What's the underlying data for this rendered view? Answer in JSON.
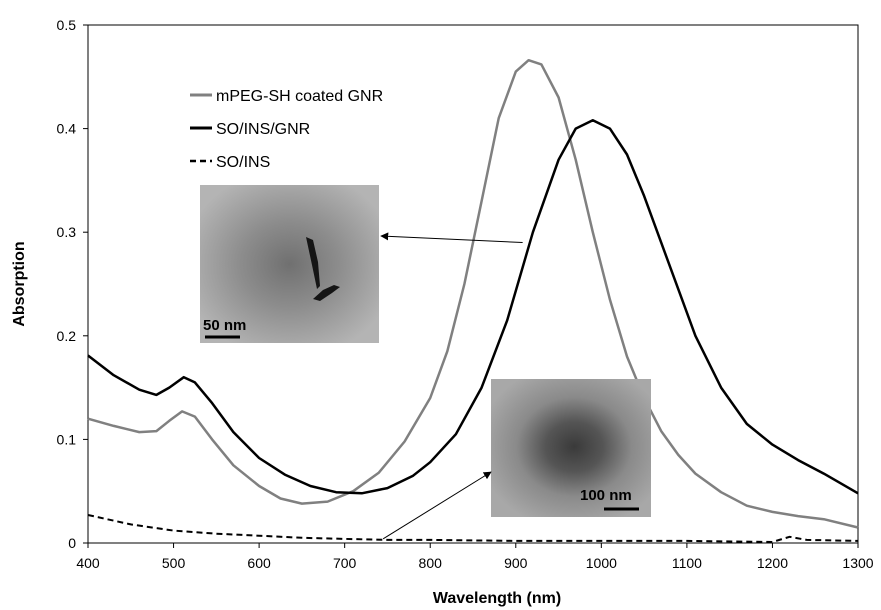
{
  "chart_data": {
    "type": "line",
    "xlabel": "Wavelength (nm)",
    "ylabel": "Absorption",
    "xlim": [
      400,
      1300
    ],
    "ylim": [
      0,
      0.5
    ],
    "x_ticks": [
      "400",
      "500",
      "600",
      "700",
      "800",
      "900",
      "1000",
      "1100",
      "1200",
      "1300"
    ],
    "y_ticks": [
      "0",
      "0.1",
      "0.2",
      "0.3",
      "0.4",
      "0.5"
    ],
    "grid": false,
    "legend_position": "top-left",
    "series": [
      {
        "name": "mPEG-SH coated GNR",
        "color": "#808080",
        "style": "solid",
        "points": [
          [
            400,
            0.12
          ],
          [
            430,
            0.113
          ],
          [
            460,
            0.107
          ],
          [
            480,
            0.108
          ],
          [
            495,
            0.118
          ],
          [
            510,
            0.127
          ],
          [
            525,
            0.122
          ],
          [
            545,
            0.1
          ],
          [
            570,
            0.075
          ],
          [
            600,
            0.055
          ],
          [
            625,
            0.043
          ],
          [
            650,
            0.038
          ],
          [
            680,
            0.04
          ],
          [
            710,
            0.05
          ],
          [
            740,
            0.068
          ],
          [
            770,
            0.098
          ],
          [
            800,
            0.14
          ],
          [
            820,
            0.185
          ],
          [
            840,
            0.25
          ],
          [
            860,
            0.33
          ],
          [
            880,
            0.41
          ],
          [
            900,
            0.455
          ],
          [
            915,
            0.466
          ],
          [
            930,
            0.462
          ],
          [
            950,
            0.43
          ],
          [
            970,
            0.37
          ],
          [
            990,
            0.3
          ],
          [
            1010,
            0.235
          ],
          [
            1030,
            0.18
          ],
          [
            1050,
            0.14
          ],
          [
            1070,
            0.108
          ],
          [
            1090,
            0.085
          ],
          [
            1110,
            0.067
          ],
          [
            1140,
            0.049
          ],
          [
            1170,
            0.036
          ],
          [
            1200,
            0.03
          ],
          [
            1230,
            0.026
          ],
          [
            1260,
            0.023
          ],
          [
            1300,
            0.015
          ]
        ]
      },
      {
        "name": "SO/INS/GNR",
        "color": "#000000",
        "style": "solid",
        "points": [
          [
            400,
            0.181
          ],
          [
            430,
            0.162
          ],
          [
            460,
            0.148
          ],
          [
            480,
            0.143
          ],
          [
            495,
            0.15
          ],
          [
            512,
            0.16
          ],
          [
            525,
            0.155
          ],
          [
            545,
            0.135
          ],
          [
            570,
            0.107
          ],
          [
            600,
            0.082
          ],
          [
            630,
            0.066
          ],
          [
            660,
            0.055
          ],
          [
            690,
            0.049
          ],
          [
            720,
            0.048
          ],
          [
            750,
            0.053
          ],
          [
            780,
            0.065
          ],
          [
            800,
            0.078
          ],
          [
            830,
            0.105
          ],
          [
            860,
            0.15
          ],
          [
            890,
            0.215
          ],
          [
            920,
            0.3
          ],
          [
            950,
            0.37
          ],
          [
            970,
            0.4
          ],
          [
            990,
            0.408
          ],
          [
            1010,
            0.4
          ],
          [
            1030,
            0.375
          ],
          [
            1050,
            0.335
          ],
          [
            1070,
            0.29
          ],
          [
            1090,
            0.245
          ],
          [
            1110,
            0.2
          ],
          [
            1140,
            0.15
          ],
          [
            1170,
            0.115
          ],
          [
            1200,
            0.095
          ],
          [
            1230,
            0.08
          ],
          [
            1260,
            0.067
          ],
          [
            1300,
            0.048
          ]
        ]
      },
      {
        "name": "SO/INS",
        "color": "#000000",
        "style": "dashed",
        "points": [
          [
            400,
            0.027
          ],
          [
            450,
            0.018
          ],
          [
            500,
            0.012
          ],
          [
            550,
            0.009
          ],
          [
            600,
            0.007
          ],
          [
            650,
            0.005
          ],
          [
            700,
            0.004
          ],
          [
            750,
            0.003
          ],
          [
            800,
            0.003
          ],
          [
            900,
            0.002
          ],
          [
            1000,
            0.002
          ],
          [
            1100,
            0.002
          ],
          [
            1200,
            0.001
          ],
          [
            1220,
            0.006
          ],
          [
            1240,
            0.003
          ],
          [
            1300,
            0.002
          ]
        ]
      }
    ],
    "insets": [
      {
        "name": "tem-gnr-inset",
        "scale_bar_label": "50 nm",
        "arrow_to": [
          908,
          0.29
        ]
      },
      {
        "name": "tem-so-ins-inset",
        "scale_bar_label": "100 nm",
        "arrow_to": [
          745,
          0.004
        ]
      }
    ]
  }
}
